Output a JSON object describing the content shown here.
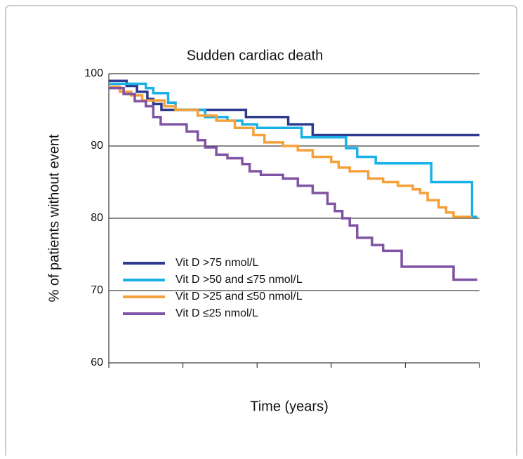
{
  "chart_data": {
    "type": "step",
    "title": "Sudden cardiac death",
    "x_label": "Time (years)",
    "y_label": "% of patients without event",
    "xlim": [
      0,
      5
    ],
    "xticks": [
      0,
      1,
      2,
      3,
      4,
      5
    ],
    "ylim": [
      60,
      100
    ],
    "yticks": [
      60,
      70,
      80,
      90,
      100
    ],
    "grid": true,
    "legend": "lower left",
    "series": [
      {
        "name": "Vit D >75 nmol/L",
        "color": "#2e3a8c",
        "x": [
          0,
          0.24,
          0.38,
          0.52,
          0.6,
          0.71,
          1.85,
          2.42,
          2.75,
          5
        ],
        "values": [
          99,
          98.3,
          97.5,
          96.5,
          95.8,
          95,
          94,
          93,
          91.5,
          91.5
        ]
      },
      {
        "name": "Vit D >50 and ≤75 nmol/L",
        "color": "#1ab0e8",
        "x": [
          0,
          0.5,
          0.6,
          0.8,
          0.9,
          1.3,
          1.6,
          1.8,
          2.0,
          2.6,
          3.2,
          3.35,
          3.6,
          4.35,
          4.9,
          4.97
        ],
        "values": [
          98.6,
          98,
          97.3,
          96,
          95,
          94,
          93.5,
          93,
          92.5,
          91.2,
          89.7,
          88.5,
          87.6,
          85,
          80.2,
          80.2
        ]
      },
      {
        "name": "Vit D >25 and ≤50 nmol/L",
        "color": "#f5a03a",
        "x": [
          0,
          0.15,
          0.3,
          0.45,
          0.75,
          0.9,
          1.2,
          1.45,
          1.7,
          1.95,
          2.1,
          2.35,
          2.55,
          2.75,
          3.0,
          3.1,
          3.25,
          3.5,
          3.7,
          3.9,
          4.1,
          4.2,
          4.3,
          4.45,
          4.55,
          4.65,
          4.9
        ],
        "values": [
          98.2,
          97.5,
          97,
          96.3,
          95.5,
          95,
          94.2,
          93.5,
          92.5,
          91.5,
          90.5,
          90,
          89.4,
          88.5,
          87.8,
          87,
          86.5,
          85.5,
          85,
          84.5,
          84,
          83.5,
          82.5,
          81.5,
          80.8,
          80.2,
          80.2
        ]
      },
      {
        "name": "Vit D ≤25 nmol/L",
        "color": "#8054a4",
        "x": [
          0,
          0.2,
          0.35,
          0.5,
          0.6,
          0.7,
          1.05,
          1.2,
          1.3,
          1.45,
          1.6,
          1.8,
          1.9,
          2.05,
          2.35,
          2.55,
          2.75,
          2.95,
          3.05,
          3.15,
          3.25,
          3.35,
          3.55,
          3.7,
          3.95,
          4.65,
          4.97
        ],
        "values": [
          98,
          97.2,
          96.2,
          95.5,
          94,
          93,
          92,
          90.8,
          89.8,
          88.8,
          88.3,
          87.5,
          86.5,
          86,
          85.5,
          84.5,
          83.5,
          82,
          81,
          80,
          79,
          77.3,
          76.3,
          75.5,
          73.3,
          71.5,
          71.5
        ]
      }
    ]
  }
}
